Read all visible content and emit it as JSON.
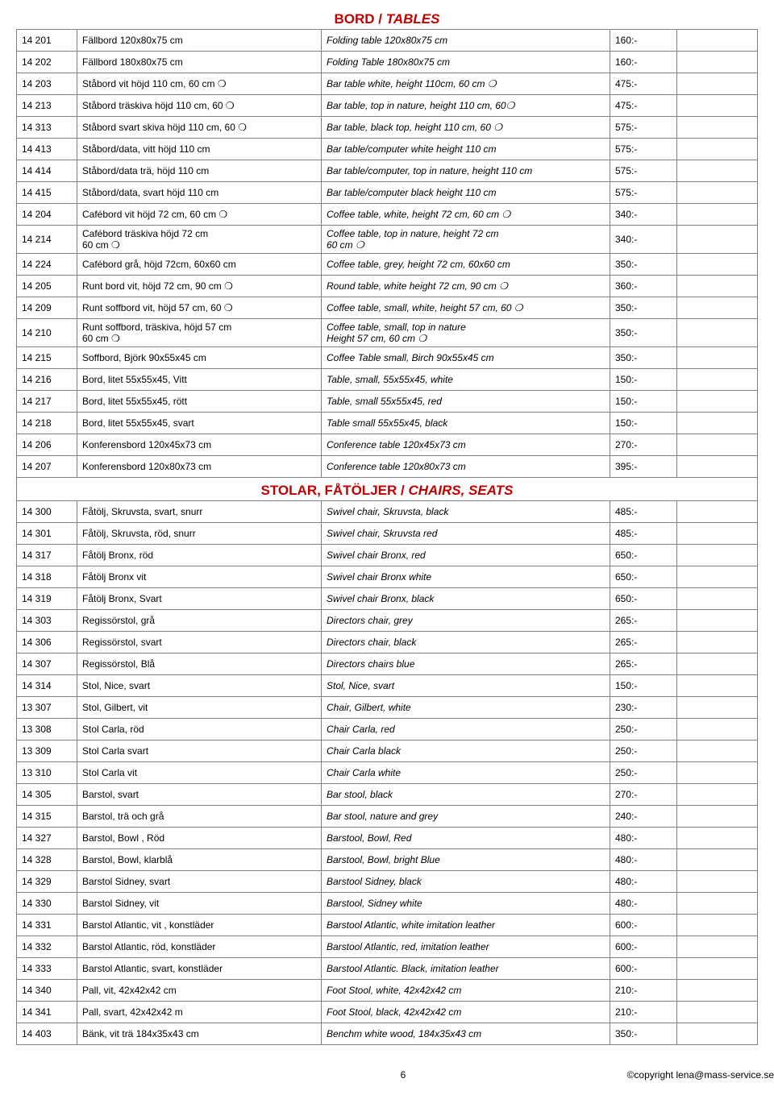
{
  "section1": {
    "title_sv": "BORD / ",
    "title_en": "TABLES"
  },
  "section2": {
    "title_sv": "STOLAR, FÅTÖLJER / ",
    "title_en": "CHAIRS, SEATS"
  },
  "tables_rows": [
    {
      "code": "14 201",
      "sv": "Fällbord 120x80x75 cm",
      "en": "Folding table 120x80x75 cm",
      "price": "160:-"
    },
    {
      "code": "14 202",
      "sv": "Fällbord 180x80x75 cm",
      "en": "Folding Table 180x80x75 cm",
      "price": "160:-"
    },
    {
      "code": "14 203",
      "sv": "Ståbord vit höjd 110 cm, 60 cm ❍",
      "en": "Bar table white, height 110cm, 60 cm ❍",
      "price": "475:-"
    },
    {
      "code": "14 213",
      "sv": "Ståbord träskiva höjd 110 cm, 60 ❍",
      "en": "Bar table, top in nature, height 110 cm, 60❍",
      "price": "475:-"
    },
    {
      "code": "14 313",
      "sv": "Ståbord svart skiva höjd 110 cm, 60 ❍",
      "en": "Bar table, black top, height 110 cm, 60 ❍",
      "price": "575:-"
    },
    {
      "code": "14 413",
      "sv": "Ståbord/data, vitt höjd 110 cm",
      "en": "Bar table/computer white height 110 cm",
      "price": "575:-"
    },
    {
      "code": "14 414",
      "sv": "Ståbord/data trä, höjd 110 cm",
      "en": "Bar table/computer, top in nature, height 110 cm",
      "price": "575:-"
    },
    {
      "code": "14 415",
      "sv": "Ståbord/data, svart höjd 110 cm",
      "en": "Bar table/computer black height 110 cm",
      "price": "575:-"
    },
    {
      "code": "14 204",
      "sv": "Cafébord vit höjd 72 cm, 60 cm ❍",
      "en": "Coffee table, white, height 72 cm, 60 cm ❍",
      "price": "340:-"
    },
    {
      "code": "14 214",
      "sv": "Cafébord träskiva höjd 72 cm\n60 cm ❍",
      "en": "Coffee table, top in nature, height 72 cm\n60 cm ❍",
      "price": "340:-"
    },
    {
      "code": "14 224",
      "sv": "Cafébord grå, höjd 72cm, 60x60 cm",
      "en": "Coffee table, grey, height 72 cm, 60x60 cm",
      "price": "350:-"
    },
    {
      "code": "14 205",
      "sv": "Runt bord vit, höjd 72 cm, 90 cm ❍",
      "en": "Round table, white height 72 cm, 90 cm ❍",
      "price": "360:-"
    },
    {
      "code": "14 209",
      "sv": "Runt soffbord vit, höjd 57 cm, 60 ❍",
      "en": "Coffee table, small, white, height 57 cm, 60 ❍",
      "price": "350:-"
    },
    {
      "code": "14 210",
      "sv": "Runt soffbord, träskiva, höjd 57 cm\n60 cm ❍",
      "en": "Coffee table, small, top in nature\nHeight 57 cm, 60 cm ❍",
      "price": "350:-"
    },
    {
      "code": "14 215",
      "sv": "Soffbord, Björk 90x55x45 cm",
      "en": "Coffee Table small, Birch 90x55x45 cm",
      "price": "350:-"
    },
    {
      "code": "14 216",
      "sv": "Bord, litet 55x55x45, Vitt",
      "en": "Table, small, 55x55x45, white",
      "price": "150:-"
    },
    {
      "code": "14 217",
      "sv": "Bord, litet 55x55x45, rött",
      "en": "Table, small 55x55x45, red",
      "price": "150:-"
    },
    {
      "code": "14 218",
      "sv": "Bord, litet 55x55x45, svart",
      "en": "Table small 55x55x45, black",
      "price": "150:-"
    },
    {
      "code": "14 206",
      "sv": "Konferensbord 120x45x73 cm",
      "en": "Conference table 120x45x73 cm",
      "price": "270:-"
    },
    {
      "code": "14 207",
      "sv": "Konferensbord 120x80x73 cm",
      "en": "Conference table 120x80x73 cm",
      "price": "395:-"
    }
  ],
  "chairs_rows": [
    {
      "code": "14 300",
      "sv": "Fåtölj, Skruvsta, svart, snurr",
      "en": "Swivel chair, Skruvsta, black",
      "price": "485:-"
    },
    {
      "code": "14 301",
      "sv": "Fåtölj, Skruvsta, röd, snurr",
      "en": "Swivel chair, Skruvsta red",
      "price": "485:-"
    },
    {
      "code": "14 317",
      "sv": "Fåtölj Bronx, röd",
      "en": "Swivel chair Bronx, red",
      "price": "650:-"
    },
    {
      "code": "14 318",
      "sv": "Fåtölj Bronx vit",
      "en": "Swivel chair Bronx white",
      "price": "650:-"
    },
    {
      "code": "14 319",
      "sv": "Fåtölj Bronx, Svart",
      "en": "Swivel chair Bronx, black",
      "price": "650:-"
    },
    {
      "code": "14 303",
      "sv": "Regissörstol, grå",
      "en": "Directors chair, grey",
      "price": "265:-"
    },
    {
      "code": "14 306",
      "sv": "Regissörstol, svart",
      "en": "Directors chair, black",
      "price": "265:-"
    },
    {
      "code": "14 307",
      "sv": "Regissörstol, Blå",
      "en": "Directors chairs blue",
      "price": "265:-"
    },
    {
      "code": "14 314",
      "sv": "Stol, Nice, svart",
      "en": "Stol, Nice, svart",
      "price": "150:-"
    },
    {
      "code": "13 307",
      "sv": "Stol, Gilbert, vit",
      "en": "Chair, Gilbert, white",
      "price": "230:-"
    },
    {
      "code": "13 308",
      "sv": "Stol Carla, röd",
      "en": "Chair Carla, red",
      "price": "250:-"
    },
    {
      "code": "13 309",
      "sv": "Stol Carla svart",
      "en": "Chair Carla black",
      "price": "250:-"
    },
    {
      "code": "13 310",
      "sv": "Stol Carla vit",
      "en": "Chair Carla white",
      "price": "250:-"
    },
    {
      "code": "14 305",
      "sv": "Barstol, svart",
      "en": "Bar stool, black",
      "price": "270:-"
    },
    {
      "code": "14 315",
      "sv": "Barstol, trä och grå",
      "en": "Bar stool, nature and grey",
      "price": "240:-"
    },
    {
      "code": "14 327",
      "sv": "Barstol, Bowl , Röd",
      "en": "Barstool, Bowl, Red",
      "price": "480:-"
    },
    {
      "code": "14 328",
      "sv": "Barstol, Bowl, klarblå",
      "en": "Barstool, Bowl, bright Blue",
      "price": "480:-"
    },
    {
      "code": "14 329",
      "sv": "Barstol Sidney, svart",
      "en": "Barstool Sidney, black",
      "price": "480:-"
    },
    {
      "code": "14 330",
      "sv": "Barstol Sidney, vit",
      "en": "Barstool, Sidney white",
      "price": "480:-"
    },
    {
      "code": "14 331",
      "sv": "Barstol Atlantic, vit , konstläder",
      "en": "Barstool Atlantic, white imitation leather",
      "price": "600:-"
    },
    {
      "code": "14 332",
      "sv": "Barstol Atlantic, röd, konstläder",
      "en": "Barstool Atlantic, red, imitation leather",
      "price": "600:-"
    },
    {
      "code": "14 333",
      "sv": "Barstol Atlantic, svart, konstläder",
      "en": "Barstool Atlantic. Black, imitation leather",
      "price": "600:-"
    },
    {
      "code": "14 340",
      "sv": "Pall, vit, 42x42x42 cm",
      "en": "Foot Stool, white, 42x42x42 cm",
      "price": "210:-"
    },
    {
      "code": "14 341",
      "sv": "Pall, svart, 42x42x42 m",
      "en": "Foot Stool, black, 42x42x42 cm",
      "price": "210:-"
    },
    {
      "code": "14 403",
      "sv": "Bänk, vit trä 184x35x43 cm",
      "en": "Benchm white wood, 184x35x43 cm",
      "price": "350:-"
    }
  ],
  "footer": {
    "page": "6",
    "copyright": "©copyright lena@mass-service.se"
  }
}
